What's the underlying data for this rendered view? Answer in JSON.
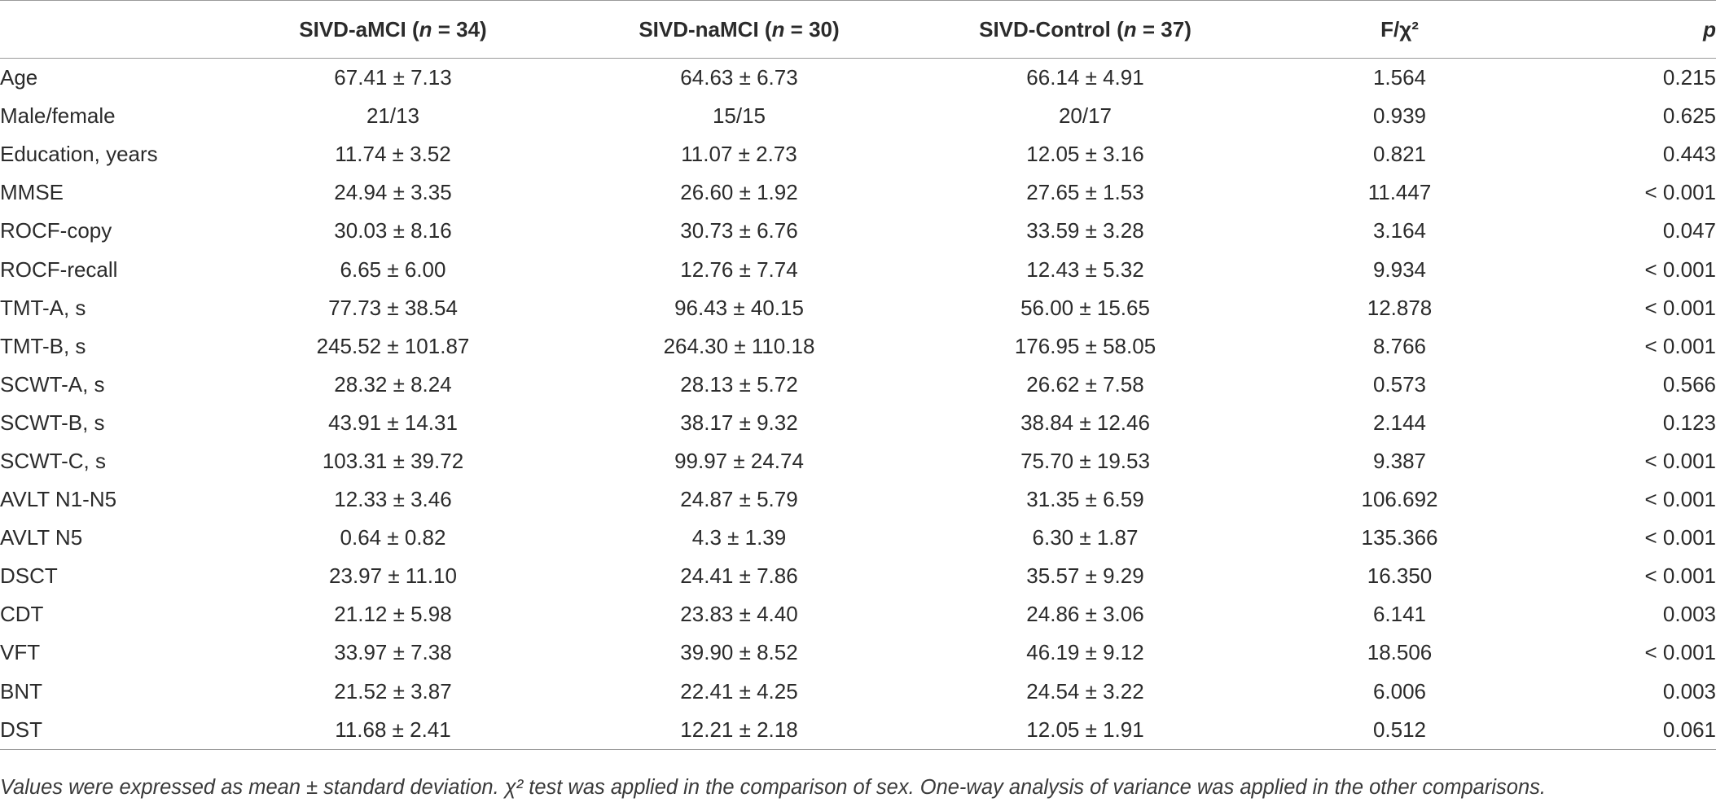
{
  "table": {
    "headers": [
      {
        "key": "variable",
        "label": ""
      },
      {
        "key": "amci",
        "label": "SIVD-aMCI (n = 34)"
      },
      {
        "key": "namci",
        "label": "SIVD-naMCI (n = 30)"
      },
      {
        "key": "control",
        "label": "SIVD-Control (n = 37)"
      },
      {
        "key": "stat",
        "label": "F/χ²"
      },
      {
        "key": "p",
        "label": "p"
      }
    ],
    "rows": [
      [
        "Age",
        "67.41 ± 7.13",
        "64.63 ± 6.73",
        "66.14 ± 4.91",
        "1.564",
        "0.215"
      ],
      [
        "Male/female",
        "21/13",
        "15/15",
        "20/17",
        "0.939",
        "0.625"
      ],
      [
        "Education, years",
        "11.74 ± 3.52",
        "11.07 ± 2.73",
        "12.05 ± 3.16",
        "0.821",
        "0.443"
      ],
      [
        "MMSE",
        "24.94 ± 3.35",
        "26.60 ± 1.92",
        "27.65 ± 1.53",
        "11.447",
        "< 0.001"
      ],
      [
        "ROCF-copy",
        "30.03 ± 8.16",
        "30.73 ± 6.76",
        "33.59 ± 3.28",
        "3.164",
        "0.047"
      ],
      [
        "ROCF-recall",
        "6.65 ± 6.00",
        "12.76 ± 7.74",
        "12.43 ± 5.32",
        "9.934",
        "< 0.001"
      ],
      [
        "TMT-A, s",
        "77.73 ± 38.54",
        "96.43 ± 40.15",
        "56.00 ± 15.65",
        "12.878",
        "< 0.001"
      ],
      [
        "TMT-B, s",
        "245.52 ± 101.87",
        "264.30 ± 110.18",
        "176.95 ± 58.05",
        "8.766",
        "< 0.001"
      ],
      [
        "SCWT-A, s",
        "28.32 ± 8.24",
        "28.13 ± 5.72",
        "26.62 ± 7.58",
        "0.573",
        "0.566"
      ],
      [
        "SCWT-B, s",
        "43.91 ± 14.31",
        "38.17 ± 9.32",
        "38.84 ± 12.46",
        "2.144",
        "0.123"
      ],
      [
        "SCWT-C, s",
        "103.31 ± 39.72",
        "99.97 ± 24.74",
        "75.70 ± 19.53",
        "9.387",
        "< 0.001"
      ],
      [
        "AVLT N1-N5",
        "12.33 ± 3.46",
        "24.87 ± 5.79",
        "31.35 ± 6.59",
        "106.692",
        "< 0.001"
      ],
      [
        "AVLT N5",
        "0.64 ± 0.82",
        "4.3 ± 1.39",
        "6.30 ± 1.87",
        "135.366",
        "< 0.001"
      ],
      [
        "DSCT",
        "23.97 ± 11.10",
        "24.41 ± 7.86",
        "35.57 ± 9.29",
        "16.350",
        "< 0.001"
      ],
      [
        "CDT",
        "21.12 ± 5.98",
        "23.83 ± 4.40",
        "24.86 ± 3.06",
        "6.141",
        "0.003"
      ],
      [
        "VFT",
        "33.97 ± 7.38",
        "39.90 ± 8.52",
        "46.19 ± 9.12",
        "18.506",
        "< 0.001"
      ],
      [
        "BNT",
        "21.52 ± 3.87",
        "22.41 ± 4.25",
        "24.54 ± 3.22",
        "6.006",
        "0.003"
      ],
      [
        "DST",
        "11.68 ± 2.41",
        "12.21 ± 2.18",
        "12.05 ± 1.91",
        "0.512",
        "0.061"
      ]
    ]
  },
  "footnote": "Values were expressed as mean ± standard deviation. χ² test was applied in the comparison of sex. One-way analysis of variance was applied in the other comparisons."
}
